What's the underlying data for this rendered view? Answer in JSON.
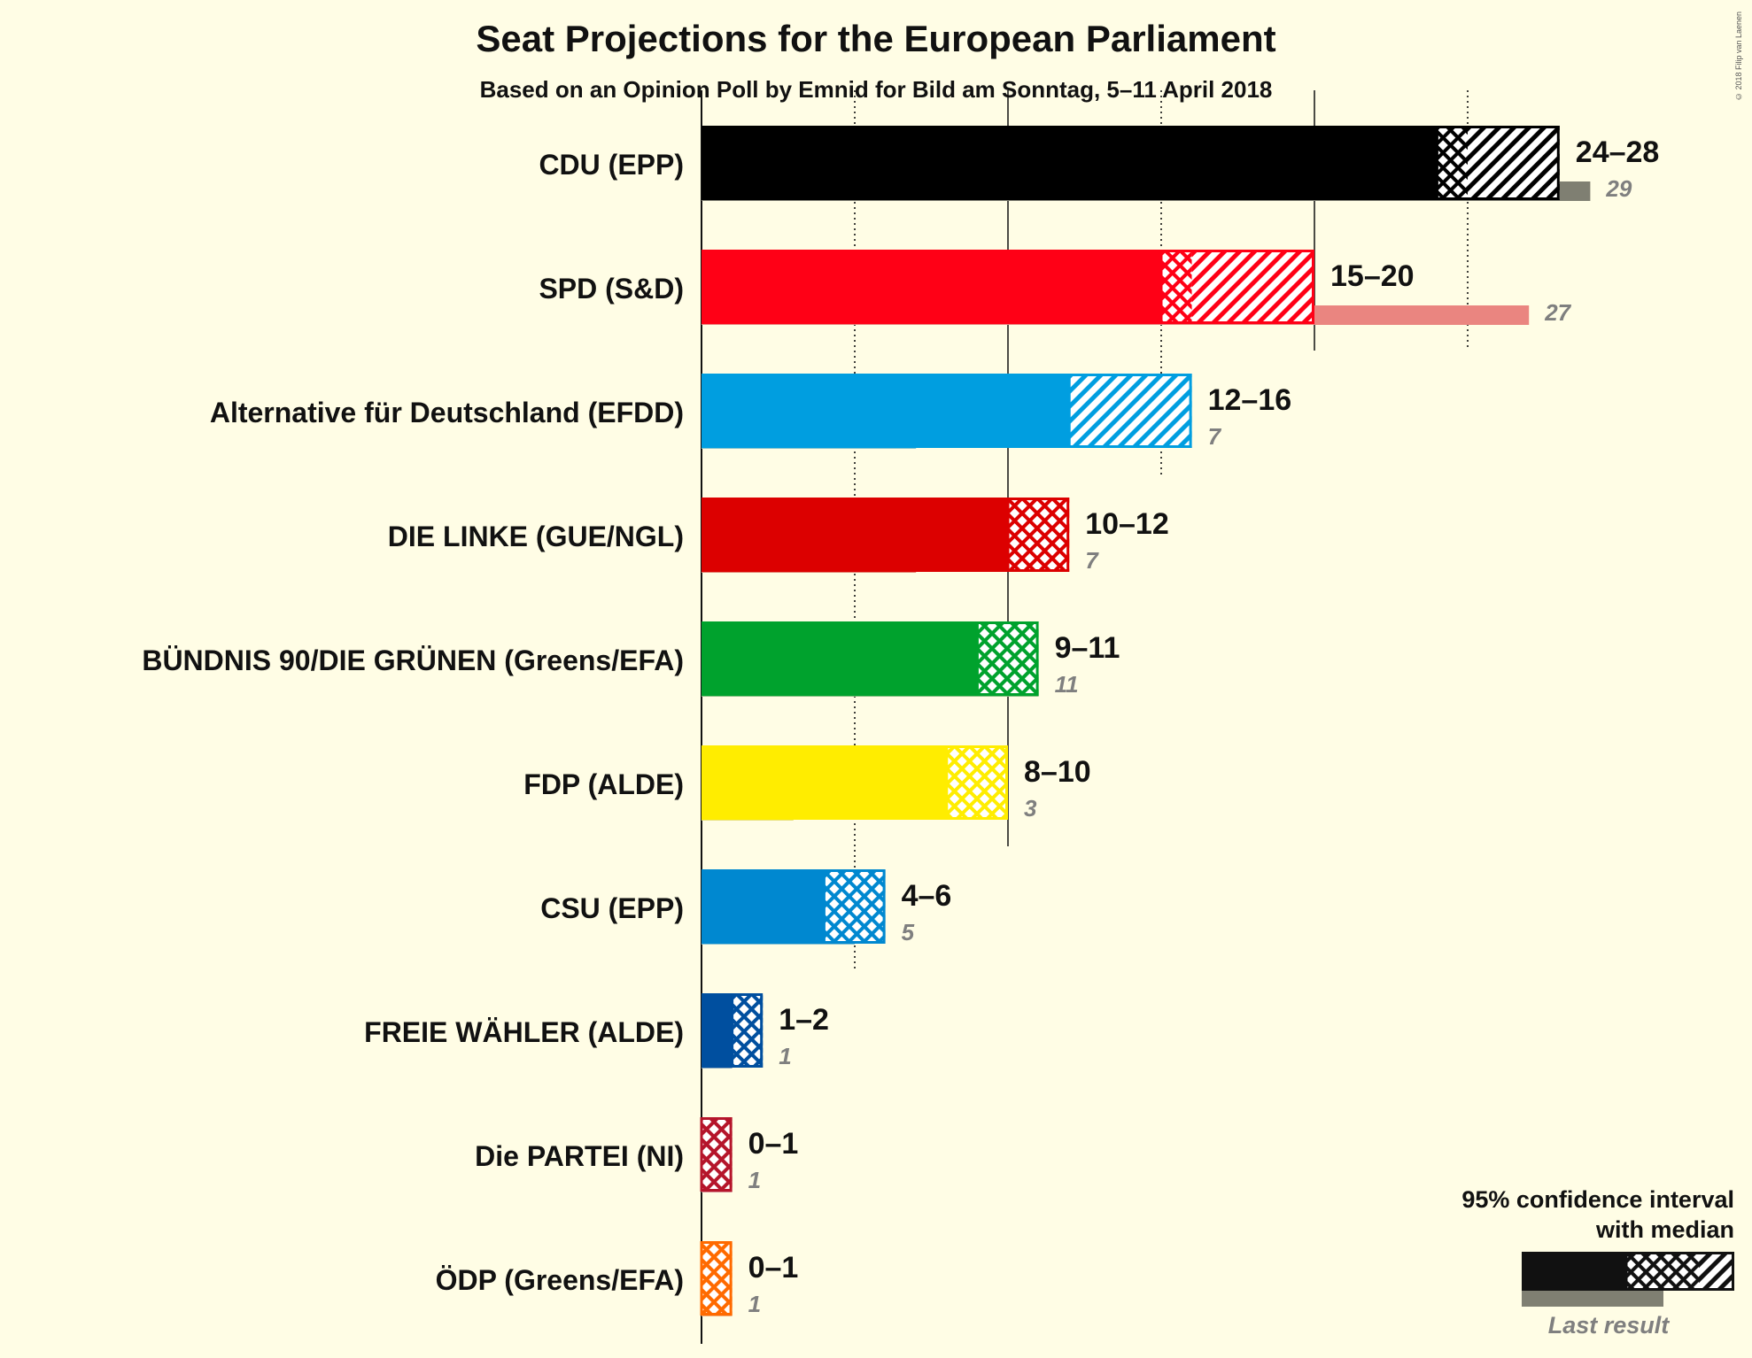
{
  "title": "Seat Projections for the European Parliament",
  "subtitle": "Based on an Opinion Poll by Emnid for Bild am Sonntag, 5–11 April 2018",
  "copyright": "© 2018 Filip van Laenen",
  "legend": {
    "line1": "95% confidence interval",
    "line2": "with median",
    "last_result": "Last result"
  },
  "chart_data": {
    "type": "bar",
    "orientation": "horizontal",
    "x_max": 30,
    "gridlines": [
      5,
      10,
      15,
      20,
      25
    ],
    "parties": [
      {
        "name": "CDU (EPP)",
        "low": 24,
        "median": 25,
        "high": 28,
        "label": "24–28",
        "last": 29,
        "last_label": "29",
        "color": "#000000",
        "last_color": "#7f7f72"
      },
      {
        "name": "SPD (S&D)",
        "low": 15,
        "median": 16,
        "high": 20,
        "label": "15–20",
        "last": 27,
        "last_label": "27",
        "color": "#ff0016",
        "last_color": "#ea8580"
      },
      {
        "name": "Alternative für Deutschland (EFDD)",
        "low": 12,
        "median": 12,
        "high": 16,
        "label": "12–16",
        "last": 7,
        "last_label": "7",
        "color": "#009ee0",
        "last_color": "#85c2cc"
      },
      {
        "name": "DIE LINKE (GUE/NGL)",
        "low": 10,
        "median": 12,
        "high": 12,
        "label": "10–12",
        "last": 7,
        "last_label": "7",
        "color": "#dc0000",
        "last_color": "#e18272"
      },
      {
        "name": "BÜNDNIS 90/DIE GRÜNEN (Greens/EFA)",
        "low": 9,
        "median": 11,
        "high": 11,
        "label": "9–11",
        "last": 11,
        "last_label": "11",
        "color": "#00a22d",
        "last_color": "#87be81"
      },
      {
        "name": "FDP (ALDE)",
        "low": 8,
        "median": 10,
        "high": 10,
        "label": "8–10",
        "last": 3,
        "last_label": "3",
        "color": "#ffed00",
        "last_color": "#e7e07b"
      },
      {
        "name": "CSU (EPP)",
        "low": 4,
        "median": 6,
        "high": 6,
        "label": "4–6",
        "last": 5,
        "last_label": "5",
        "color": "#0088d0",
        "last_color": "#85bfd0"
      },
      {
        "name": "FREIE WÄHLER (ALDE)",
        "low": 1,
        "median": 2,
        "high": 2,
        "label": "1–2",
        "last": 1,
        "last_label": "1",
        "color": "#004f9f",
        "last_color": "#85a3bd"
      },
      {
        "name": "Die PARTEI (NI)",
        "low": 0,
        "median": 1,
        "high": 1,
        "label": "0–1",
        "last": 1,
        "last_label": "1",
        "color": "#b5152b",
        "last_color": "#d4858d"
      },
      {
        "name": "ÖDP (Greens/EFA)",
        "low": 0,
        "median": 1,
        "high": 1,
        "label": "0–1",
        "last": 1,
        "last_label": "1",
        "color": "#ff6a00",
        "last_color": "#f0ad78"
      }
    ]
  }
}
